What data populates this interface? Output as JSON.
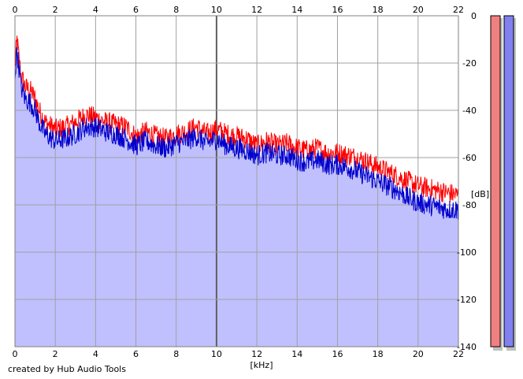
{
  "footer": {
    "credit": "created by Hub Audio Tools"
  },
  "colors": {
    "left_channel": "#ff0000",
    "right_channel": "#0000cc",
    "fill": "#c0c0ff",
    "meter_left": "#f08080",
    "meter_right": "#8080f0"
  },
  "chart_data": {
    "type": "area",
    "xlabel": "[kHz]",
    "ylabel": "[dB]",
    "xlim": [
      0,
      22
    ],
    "ylim": [
      -140,
      0
    ],
    "x_ticks": [
      "0",
      "2",
      "4",
      "6",
      "8",
      "10",
      "12",
      "14",
      "16",
      "18",
      "20",
      "22"
    ],
    "y_ticks": [
      "0",
      "-20",
      "-40",
      "-60",
      "-80",
      "-100",
      "-120",
      "-140"
    ],
    "grid": true,
    "series": [
      {
        "color": "#ff0000",
        "x": [
          0,
          0.1,
          0.2,
          0.3,
          0.5,
          0.8,
          1.0,
          1.2,
          1.5,
          2.0,
          2.5,
          3.0,
          3.5,
          4.0,
          4.5,
          5.0,
          5.5,
          6.0,
          6.5,
          7.0,
          7.5,
          8.0,
          8.5,
          9.0,
          9.5,
          10.0,
          10.5,
          11.0,
          11.5,
          12.0,
          12.5,
          13.0,
          13.5,
          14.0,
          14.5,
          15.0,
          15.5,
          16.0,
          16.5,
          17.0,
          17.5,
          18.0,
          18.5,
          19.0,
          19.5,
          20.0,
          20.5,
          21.0,
          21.5,
          22.0
        ],
        "y": [
          -22,
          -10,
          -18,
          -25,
          -30,
          -32,
          -35,
          -40,
          -45,
          -48,
          -47,
          -45,
          -42,
          -43,
          -45,
          -46,
          -47,
          -51,
          -49,
          -51,
          -52,
          -50,
          -49,
          -47,
          -50,
          -48,
          -50,
          -51,
          -52,
          -55,
          -53,
          -55,
          -54,
          -56,
          -57,
          -56,
          -58,
          -58,
          -59,
          -60,
          -62,
          -64,
          -66,
          -68,
          -70,
          -72,
          -73,
          -74,
          -75,
          -76
        ]
      },
      {
        "color": "#0000cc",
        "x": [
          0,
          0.1,
          0.2,
          0.3,
          0.5,
          0.8,
          1.0,
          1.2,
          1.5,
          2.0,
          2.5,
          3.0,
          3.5,
          4.0,
          4.5,
          5.0,
          5.5,
          6.0,
          6.5,
          7.0,
          7.5,
          8.0,
          8.5,
          9.0,
          9.5,
          10.0,
          10.5,
          11.0,
          11.5,
          12.0,
          12.5,
          13.0,
          13.5,
          14.0,
          14.5,
          15.0,
          15.5,
          16.0,
          16.5,
          17.0,
          17.5,
          18.0,
          18.5,
          19.0,
          19.5,
          20.0,
          20.5,
          21.0,
          21.5,
          22.0
        ],
        "y": [
          -25,
          -15,
          -22,
          -30,
          -35,
          -37,
          -40,
          -45,
          -50,
          -53,
          -52,
          -50,
          -47,
          -47,
          -49,
          -50,
          -52,
          -55,
          -53,
          -55,
          -56,
          -54,
          -53,
          -51,
          -54,
          -52,
          -55,
          -56,
          -57,
          -59,
          -58,
          -59,
          -59,
          -61,
          -62,
          -61,
          -63,
          -63,
          -64,
          -66,
          -68,
          -70,
          -72,
          -74,
          -77,
          -79,
          -80,
          -81,
          -82,
          -82
        ]
      }
    ],
    "level_meters": [
      {
        "color": "#f08080",
        "level": 1.0
      },
      {
        "color": "#8080f0",
        "level": 1.0
      }
    ]
  }
}
